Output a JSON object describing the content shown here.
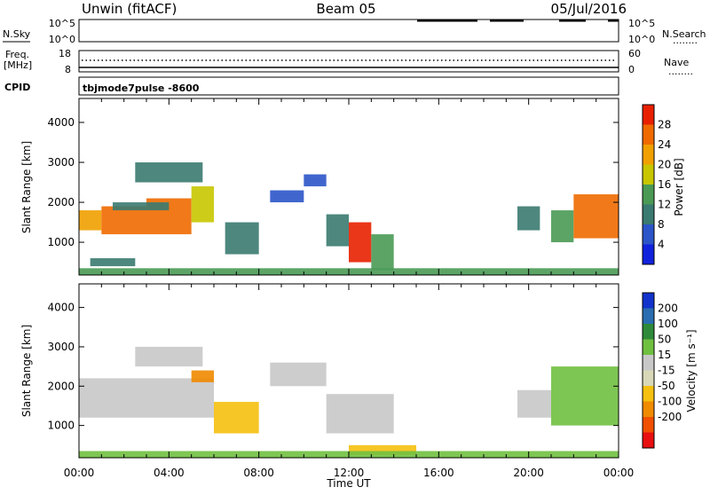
{
  "header": {
    "left_title": "Unwin (fitACF)",
    "center_title": "Beam 05",
    "date": "05/Jul/2016"
  },
  "side_labels": {
    "nsky": "N.Sky",
    "freq_line1": "Freq.",
    "freq_line2": "[MHz]",
    "cpid": "CPID",
    "nsearch": "N.Search",
    "nave": "Nave",
    "legend_dots": "........"
  },
  "nsky_panel": {
    "left_ticks": [
      "10^5",
      "10^0"
    ],
    "right_ticks": [
      "10^5",
      "10^0"
    ]
  },
  "freq_panel": {
    "left_ticks": [
      "18",
      "8"
    ],
    "right_ticks": [
      "60",
      "0"
    ]
  },
  "cpid_text": "tbjmode7pulse  -8600",
  "colors": {
    "power_scale": [
      "#1122dd",
      "#2b55c8",
      "#3a7a70",
      "#4a9a55",
      "#c8c600",
      "#f0a000",
      "#f06a00",
      "#e82000"
    ],
    "velocity_scale": [
      "#1133cc",
      "#2a6db0",
      "#2e8a3a",
      "#70c040",
      "#c8c8c8",
      "#d8d8b8",
      "#f5c010",
      "#f08a00",
      "#f05000",
      "#e81010"
    ]
  },
  "chart_data": [
    {
      "type": "heatmap",
      "panel": "power",
      "xlabel": "Time UT",
      "ylabel": "Slant Range [km]",
      "x_ticks": [
        "00:00",
        "04:00",
        "08:00",
        "12:00",
        "16:00",
        "20:00",
        "00:00"
      ],
      "xlim_hours": [
        0,
        24
      ],
      "ylim": [
        180,
        4600
      ],
      "y_ticks": [
        1000,
        2000,
        3000,
        4000
      ],
      "colorbar_label": "Power [dB]",
      "colorbar_ticks": [
        4,
        8,
        12,
        16,
        20,
        24,
        28
      ],
      "colorbar_range": [
        0,
        32
      ],
      "regions": [
        {
          "t0": 0.0,
          "t1": 1.0,
          "r0": 1300,
          "r1": 1800,
          "value": 20
        },
        {
          "t0": 1.0,
          "t1": 3.0,
          "r0": 1200,
          "r1": 1900,
          "value": 24
        },
        {
          "t0": 3.0,
          "t1": 5.0,
          "r0": 1200,
          "r1": 2100,
          "value": 26
        },
        {
          "t0": 5.0,
          "t1": 6.0,
          "r0": 1500,
          "r1": 2400,
          "value": 18
        },
        {
          "t0": 1.5,
          "t1": 4.0,
          "r0": 1800,
          "r1": 2000,
          "value": 10
        },
        {
          "t0": 2.5,
          "t1": 5.5,
          "r0": 2500,
          "r1": 3000,
          "value": 8
        },
        {
          "t0": 6.5,
          "t1": 8.0,
          "r0": 700,
          "r1": 1500,
          "value": 8
        },
        {
          "t0": 8.5,
          "t1": 10.0,
          "r0": 2000,
          "r1": 2300,
          "value": 6
        },
        {
          "t0": 10.0,
          "t1": 11.0,
          "r0": 2400,
          "r1": 2700,
          "value": 6
        },
        {
          "t0": 11.0,
          "t1": 12.0,
          "r0": 900,
          "r1": 1700,
          "value": 10
        },
        {
          "t0": 12.0,
          "t1": 13.0,
          "r0": 500,
          "r1": 1500,
          "value": 28
        },
        {
          "t0": 13.0,
          "t1": 14.0,
          "r0": 300,
          "r1": 1200,
          "value": 14
        },
        {
          "t0": 0.5,
          "t1": 2.5,
          "r0": 400,
          "r1": 600,
          "value": 10
        },
        {
          "t0": 21.0,
          "t1": 22.0,
          "r0": 1000,
          "r1": 1800,
          "value": 12
        },
        {
          "t0": 22.0,
          "t1": 24.0,
          "r0": 1100,
          "r1": 2200,
          "value": 24
        },
        {
          "t0": 19.5,
          "t1": 20.5,
          "r0": 1300,
          "r1": 1900,
          "value": 8
        },
        {
          "t0": 0.0,
          "t1": 24.0,
          "r0": 180,
          "r1": 350,
          "value": 12
        }
      ]
    },
    {
      "type": "heatmap",
      "panel": "velocity",
      "xlabel": "Time UT",
      "ylabel": "Slant Range [km]",
      "x_ticks": [
        "00:00",
        "04:00",
        "08:00",
        "12:00",
        "16:00",
        "20:00",
        "00:00"
      ],
      "xlim_hours": [
        0,
        24
      ],
      "ylim": [
        180,
        4600
      ],
      "y_ticks": [
        1000,
        2000,
        3000,
        4000
      ],
      "colorbar_label": "Velocity [m s⁻¹]",
      "colorbar_ticks": [
        "200",
        "100",
        "50",
        "15",
        "-15",
        "-50",
        "-100",
        "-200"
      ],
      "regions": [
        {
          "t0": 0.0,
          "t1": 6.0,
          "r0": 1200,
          "r1": 2200,
          "value": 0
        },
        {
          "t0": 2.5,
          "t1": 5.5,
          "r0": 2500,
          "r1": 3000,
          "value": 0
        },
        {
          "t0": 5.0,
          "t1": 6.0,
          "r0": 2100,
          "r1": 2400,
          "value": -120
        },
        {
          "t0": 6.0,
          "t1": 8.0,
          "r0": 800,
          "r1": 1600,
          "value": -60
        },
        {
          "t0": 8.5,
          "t1": 11.0,
          "r0": 2000,
          "r1": 2600,
          "value": 5
        },
        {
          "t0": 11.0,
          "t1": 14.0,
          "r0": 800,
          "r1": 1800,
          "value": 10
        },
        {
          "t0": 12.0,
          "t1": 15.0,
          "r0": 250,
          "r1": 500,
          "value": -70
        },
        {
          "t0": 0.0,
          "t1": 24.0,
          "r0": 180,
          "r1": 350,
          "value": 20
        },
        {
          "t0": 19.5,
          "t1": 21.0,
          "r0": 1200,
          "r1": 1900,
          "value": 0
        },
        {
          "t0": 21.0,
          "t1": 24.0,
          "r0": 1000,
          "r1": 2500,
          "value": 20
        }
      ]
    }
  ]
}
